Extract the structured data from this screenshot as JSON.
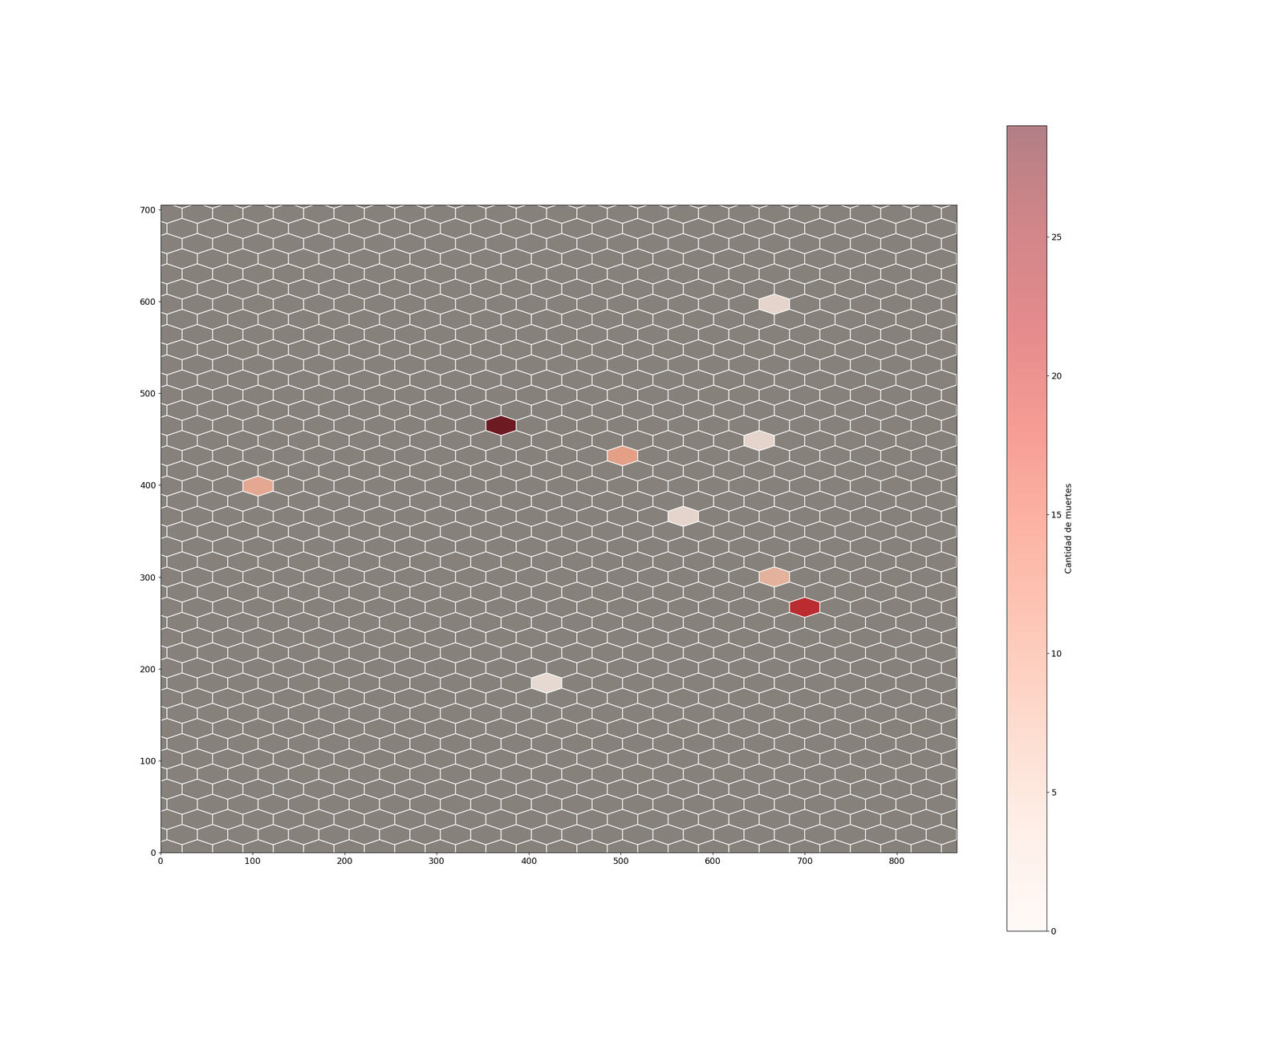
{
  "chart_data": {
    "type": "hexbin",
    "x": [
      370,
      502,
      106,
      667,
      700,
      568,
      650.5,
      419.5,
      667
    ],
    "y": [
      465,
      432,
      399,
      300,
      267,
      366,
      448.5,
      184.5,
      597
    ],
    "values": [
      29,
      9,
      8,
      7,
      22,
      2,
      2,
      1,
      2
    ],
    "color": "Reds",
    "xlim": [
      0,
      865
    ],
    "ylim": [
      0,
      705
    ],
    "xticks": [
      0,
      100,
      200,
      300,
      400,
      500,
      600,
      700,
      800
    ],
    "yticks": [
      0,
      100,
      200,
      300,
      400,
      500,
      600,
      700
    ],
    "colorbar": {
      "label": "Cantidad de muertes",
      "range": [
        0,
        29
      ],
      "ticks": [
        0,
        5,
        10,
        15,
        20,
        25
      ]
    }
  }
}
